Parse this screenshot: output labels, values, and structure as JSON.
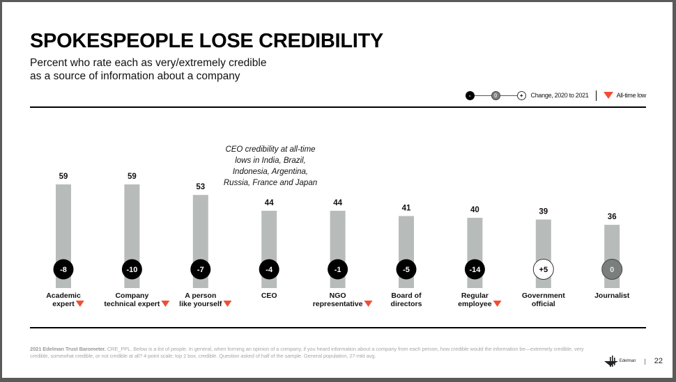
{
  "header": {
    "title": "SPOKESPEOPLE LOSE CREDIBILITY",
    "subtitle_line1": "Percent who rate each as very/extremely credible",
    "subtitle_line2": "as a source of information about a company"
  },
  "legend": {
    "negative_symbol": "-",
    "zero_symbol": "0",
    "positive_symbol": "+",
    "change_label": "Change, 2020 to 2021",
    "all_time_low_label": "All-time low"
  },
  "colors": {
    "bar": "#b7bcba",
    "negative": "#000000",
    "zero": "#7a7f7d",
    "positive": "#ffffff",
    "all_time_low": "#f04e37"
  },
  "annotation": {
    "line1": "CEO credibility at all-time",
    "line2": "lows in India, Brazil,",
    "line3": "Indonesia, Argentina,",
    "line4": "Russia, France and Japan"
  },
  "chart_data": {
    "type": "bar",
    "title": "SPOKESPEOPLE LOSE CREDIBILITY",
    "ylabel": "Percent who rate each as very/extremely credible",
    "ylim": [
      0,
      100
    ],
    "grid": false,
    "categories": [
      {
        "line1": "Academic",
        "line2": "expert",
        "all_time_low": true
      },
      {
        "line1": "Company",
        "line2": "technical expert",
        "all_time_low": true
      },
      {
        "line1": "A person",
        "line2": "like yourself",
        "all_time_low": true
      },
      {
        "line1": "CEO",
        "line2": "",
        "all_time_low": false
      },
      {
        "line1": "NGO",
        "line2": "representative",
        "all_time_low": true
      },
      {
        "line1": "Board of",
        "line2": "directors",
        "all_time_low": false
      },
      {
        "line1": "Regular",
        "line2": "employee",
        "all_time_low": true
      },
      {
        "line1": "Government",
        "line2": "official",
        "all_time_low": false
      },
      {
        "line1": "Journalist",
        "line2": "",
        "all_time_low": false
      }
    ],
    "values": [
      59,
      59,
      53,
      44,
      44,
      41,
      40,
      39,
      36
    ],
    "change_2020_to_2021": [
      "-8",
      "-10",
      "-7",
      "-4",
      "-1",
      "-5",
      "-14",
      "+5",
      "0"
    ]
  },
  "footer": {
    "source_bold": "2021 Edelman Trust Barometer.",
    "source_text": " CRE_PPL. Below is a list of people. In general, when forming an opinion of a company, if you heard information about a company from each person, how credible would the information be—extremely credible, very credible, somewhat credible, or not credible at all? 4-point scale; top 2 box, credible. Question asked of half of the sample. General population, 27-mkt avg.",
    "brand": "Edelman",
    "page_number": "22"
  }
}
